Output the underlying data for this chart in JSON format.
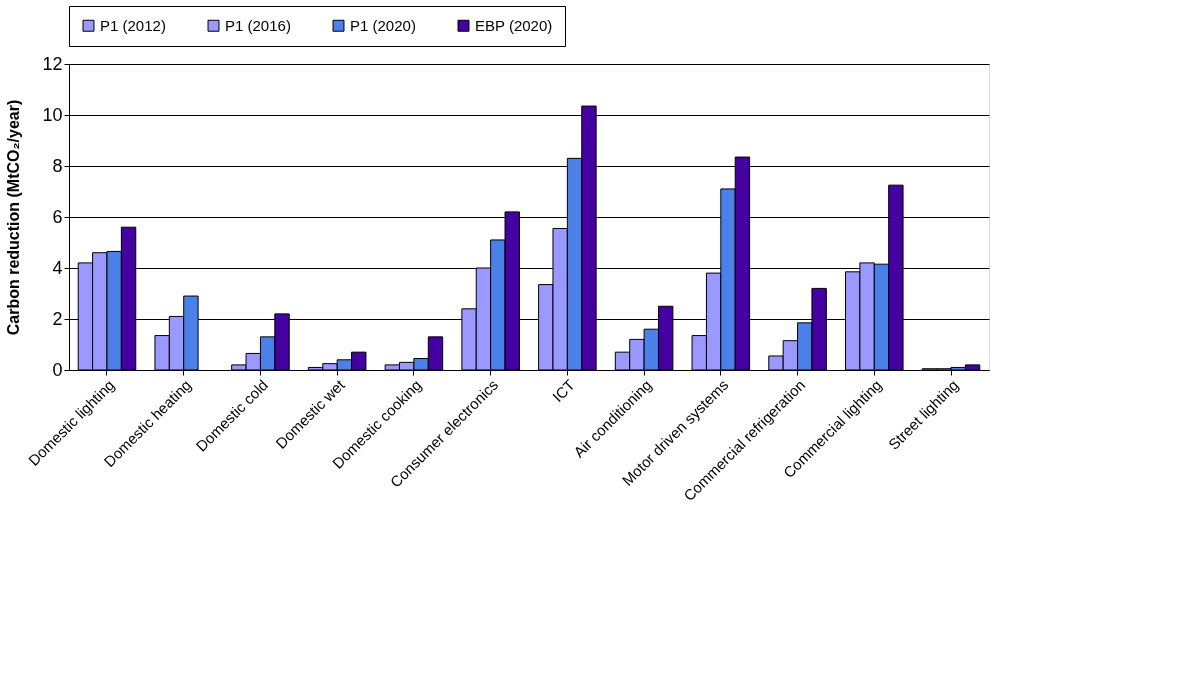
{
  "chart_data": {
    "type": "bar",
    "ylabel": "Carbon reduction (MtCO₂/year)",
    "categories": [
      "Domestic lighting",
      "Domestic heating",
      "Domestic cold",
      "Domestic wet",
      "Domestic cooking",
      "Consumer electronics",
      "ICT",
      "Air conditioning",
      "Motor driven systems",
      "Commercial refrigeration",
      "Commercial lighting",
      "Street lighting"
    ],
    "series": [
      {
        "name": "P1 (2012)",
        "color": "#9999ff",
        "values": [
          4.2,
          1.35,
          0.2,
          0.1,
          0.2,
          2.4,
          3.35,
          0.7,
          1.35,
          0.55,
          3.85,
          0.05
        ]
      },
      {
        "name": "P1 (2016)",
        "color": "#9999ff",
        "values": [
          4.6,
          2.1,
          0.65,
          0.25,
          0.3,
          4.0,
          5.55,
          1.2,
          3.8,
          1.15,
          4.2,
          0.05
        ]
      },
      {
        "name": "P1 (2020)",
        "color": "#4a80e8",
        "values": [
          4.65,
          2.9,
          1.3,
          0.4,
          0.45,
          5.1,
          8.3,
          1.6,
          7.1,
          1.85,
          4.15,
          0.1
        ]
      },
      {
        "name": "EBP (2020)",
        "color": "#4400a0",
        "values": [
          5.6,
          null,
          2.2,
          0.7,
          1.3,
          6.2,
          10.35,
          2.5,
          8.35,
          3.2,
          7.25,
          0.2
        ]
      }
    ],
    "ylim": [
      0,
      12
    ],
    "yticks": [
      0,
      2,
      4,
      6,
      8,
      10,
      12
    ],
    "grid": "y",
    "legend": "top"
  }
}
